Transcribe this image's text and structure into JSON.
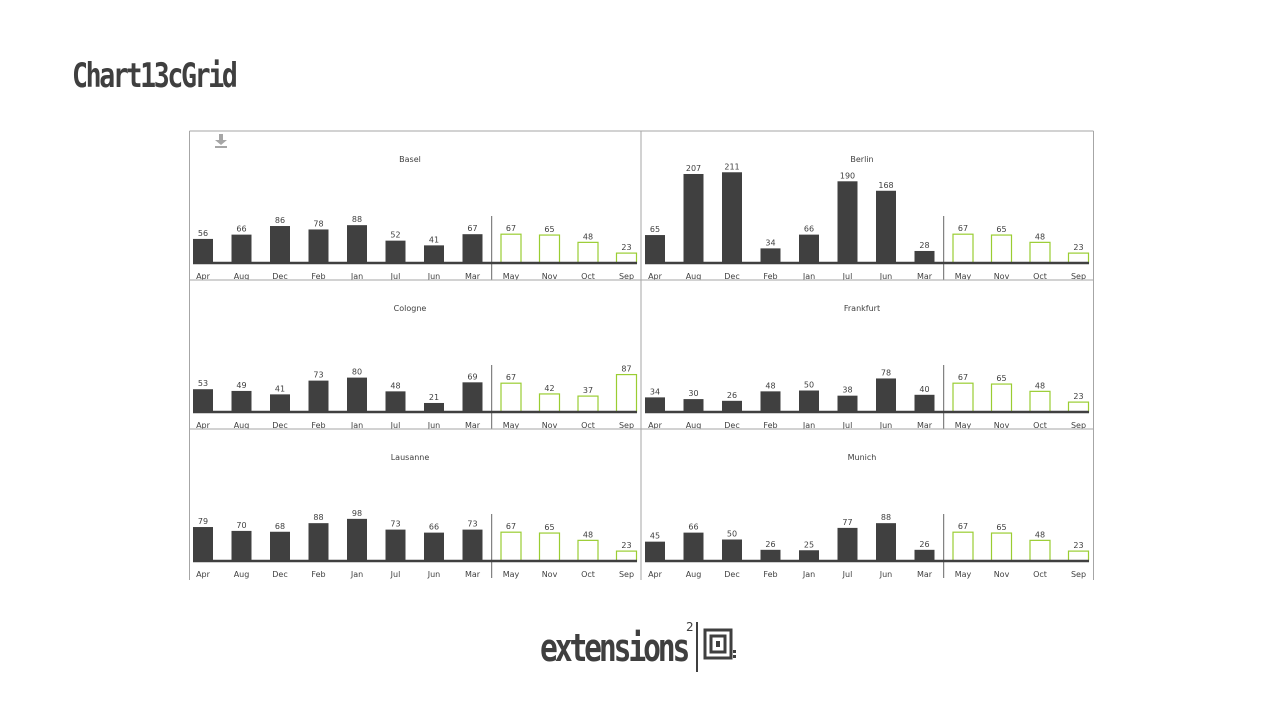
{
  "page": {
    "title": "Chart13cGrid"
  },
  "logo": {
    "word": "extensions",
    "superscript": "2"
  },
  "icons": {
    "download": "download-icon",
    "logo_mark": "extensions-logo-icon"
  },
  "colors": {
    "actual": "#404040",
    "forecast_border": "#9acd32",
    "forecast_fill": "#ffffff",
    "baseline": "#404040",
    "frame": "#a6a6a6",
    "text": "#3f3f3f"
  },
  "chart_data": [
    {
      "type": "bar",
      "title": "Basel",
      "categories": [
        "Apr",
        "Aug",
        "Dec",
        "Feb",
        "Jan",
        "Jul",
        "Jun",
        "Mar",
        "May",
        "Nov",
        "Oct",
        "Sep"
      ],
      "values": [
        56,
        66,
        86,
        78,
        88,
        52,
        41,
        67,
        67,
        65,
        48,
        23
      ],
      "forecast_categories": [
        "May",
        "Nov",
        "Oct",
        "Sep"
      ]
    },
    {
      "type": "bar",
      "title": "Berlin",
      "categories": [
        "Apr",
        "Aug",
        "Dec",
        "Feb",
        "Jan",
        "Jul",
        "Jun",
        "Mar",
        "May",
        "Nov",
        "Oct",
        "Sep"
      ],
      "values": [
        65,
        207,
        211,
        34,
        66,
        190,
        168,
        28,
        67,
        65,
        48,
        23
      ],
      "forecast_categories": [
        "May",
        "Nov",
        "Oct",
        "Sep"
      ]
    },
    {
      "type": "bar",
      "title": "Cologne",
      "categories": [
        "Apr",
        "Aug",
        "Dec",
        "Feb",
        "Jan",
        "Jul",
        "Jun",
        "Mar",
        "May",
        "Nov",
        "Oct",
        "Sep"
      ],
      "values": [
        53,
        49,
        41,
        73,
        80,
        48,
        21,
        69,
        67,
        42,
        37,
        87
      ],
      "forecast_categories": [
        "May",
        "Nov",
        "Oct",
        "Sep"
      ]
    },
    {
      "type": "bar",
      "title": "Frankfurt",
      "categories": [
        "Apr",
        "Aug",
        "Dec",
        "Feb",
        "Jan",
        "Jul",
        "Jun",
        "Mar",
        "May",
        "Nov",
        "Oct",
        "Sep"
      ],
      "values": [
        34,
        30,
        26,
        48,
        50,
        38,
        78,
        40,
        67,
        65,
        48,
        23
      ],
      "forecast_categories": [
        "May",
        "Nov",
        "Oct",
        "Sep"
      ]
    },
    {
      "type": "bar",
      "title": "Lausanne",
      "categories": [
        "Apr",
        "Aug",
        "Dec",
        "Feb",
        "Jan",
        "Jul",
        "Jun",
        "Mar",
        "May",
        "Nov",
        "Oct",
        "Sep"
      ],
      "values": [
        79,
        70,
        68,
        88,
        98,
        73,
        66,
        73,
        67,
        65,
        48,
        23
      ],
      "forecast_categories": [
        "May",
        "Nov",
        "Oct",
        "Sep"
      ]
    },
    {
      "type": "bar",
      "title": "Munich",
      "categories": [
        "Apr",
        "Aug",
        "Dec",
        "Feb",
        "Jan",
        "Jul",
        "Jun",
        "Mar",
        "May",
        "Nov",
        "Oct",
        "Sep"
      ],
      "values": [
        45,
        66,
        50,
        26,
        25,
        77,
        88,
        26,
        67,
        65,
        48,
        23
      ],
      "forecast_categories": [
        "May",
        "Nov",
        "Oct",
        "Sep"
      ]
    }
  ]
}
